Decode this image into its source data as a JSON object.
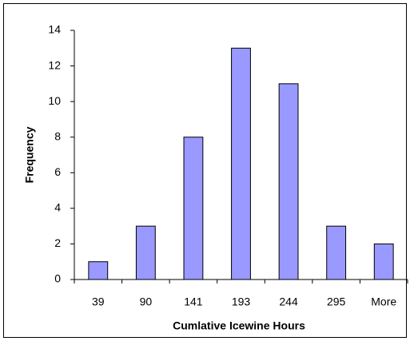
{
  "chart_data": {
    "type": "bar",
    "categories": [
      "39",
      "90",
      "141",
      "193",
      "244",
      "295",
      "More"
    ],
    "values": [
      1,
      3,
      8,
      13,
      11,
      3,
      2
    ],
    "color": "#9999ff",
    "x_label": "Cumlative Icewine Hours",
    "y_label": "Frequency",
    "ylim": [
      0,
      14
    ],
    "yticks": [
      0,
      2,
      4,
      6,
      8,
      10,
      12,
      14
    ],
    "grid": false
  }
}
